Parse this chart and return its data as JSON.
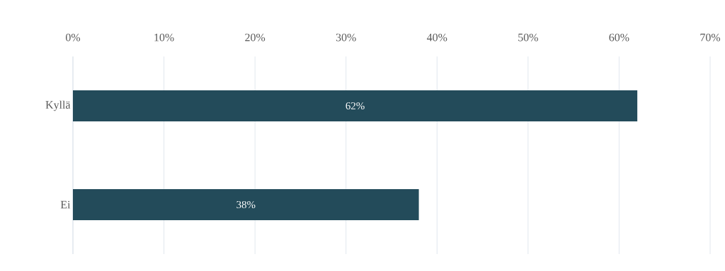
{
  "chart_data": {
    "type": "bar",
    "orientation": "horizontal",
    "categories": [
      "Kyllä",
      "Ei"
    ],
    "values": [
      62,
      38
    ],
    "value_labels": [
      "62%",
      "38%"
    ],
    "color": "#234b5a",
    "xlim": [
      0,
      70
    ],
    "xticks": [
      {
        "value": 0,
        "label": "0%"
      },
      {
        "value": 10,
        "label": "10%"
      },
      {
        "value": 20,
        "label": "20%"
      },
      {
        "value": 30,
        "label": "30%"
      },
      {
        "value": 40,
        "label": "40%"
      },
      {
        "value": 50,
        "label": "50%"
      },
      {
        "value": 60,
        "label": "60%"
      },
      {
        "value": 70,
        "label": "70%"
      }
    ],
    "grid": "x"
  }
}
